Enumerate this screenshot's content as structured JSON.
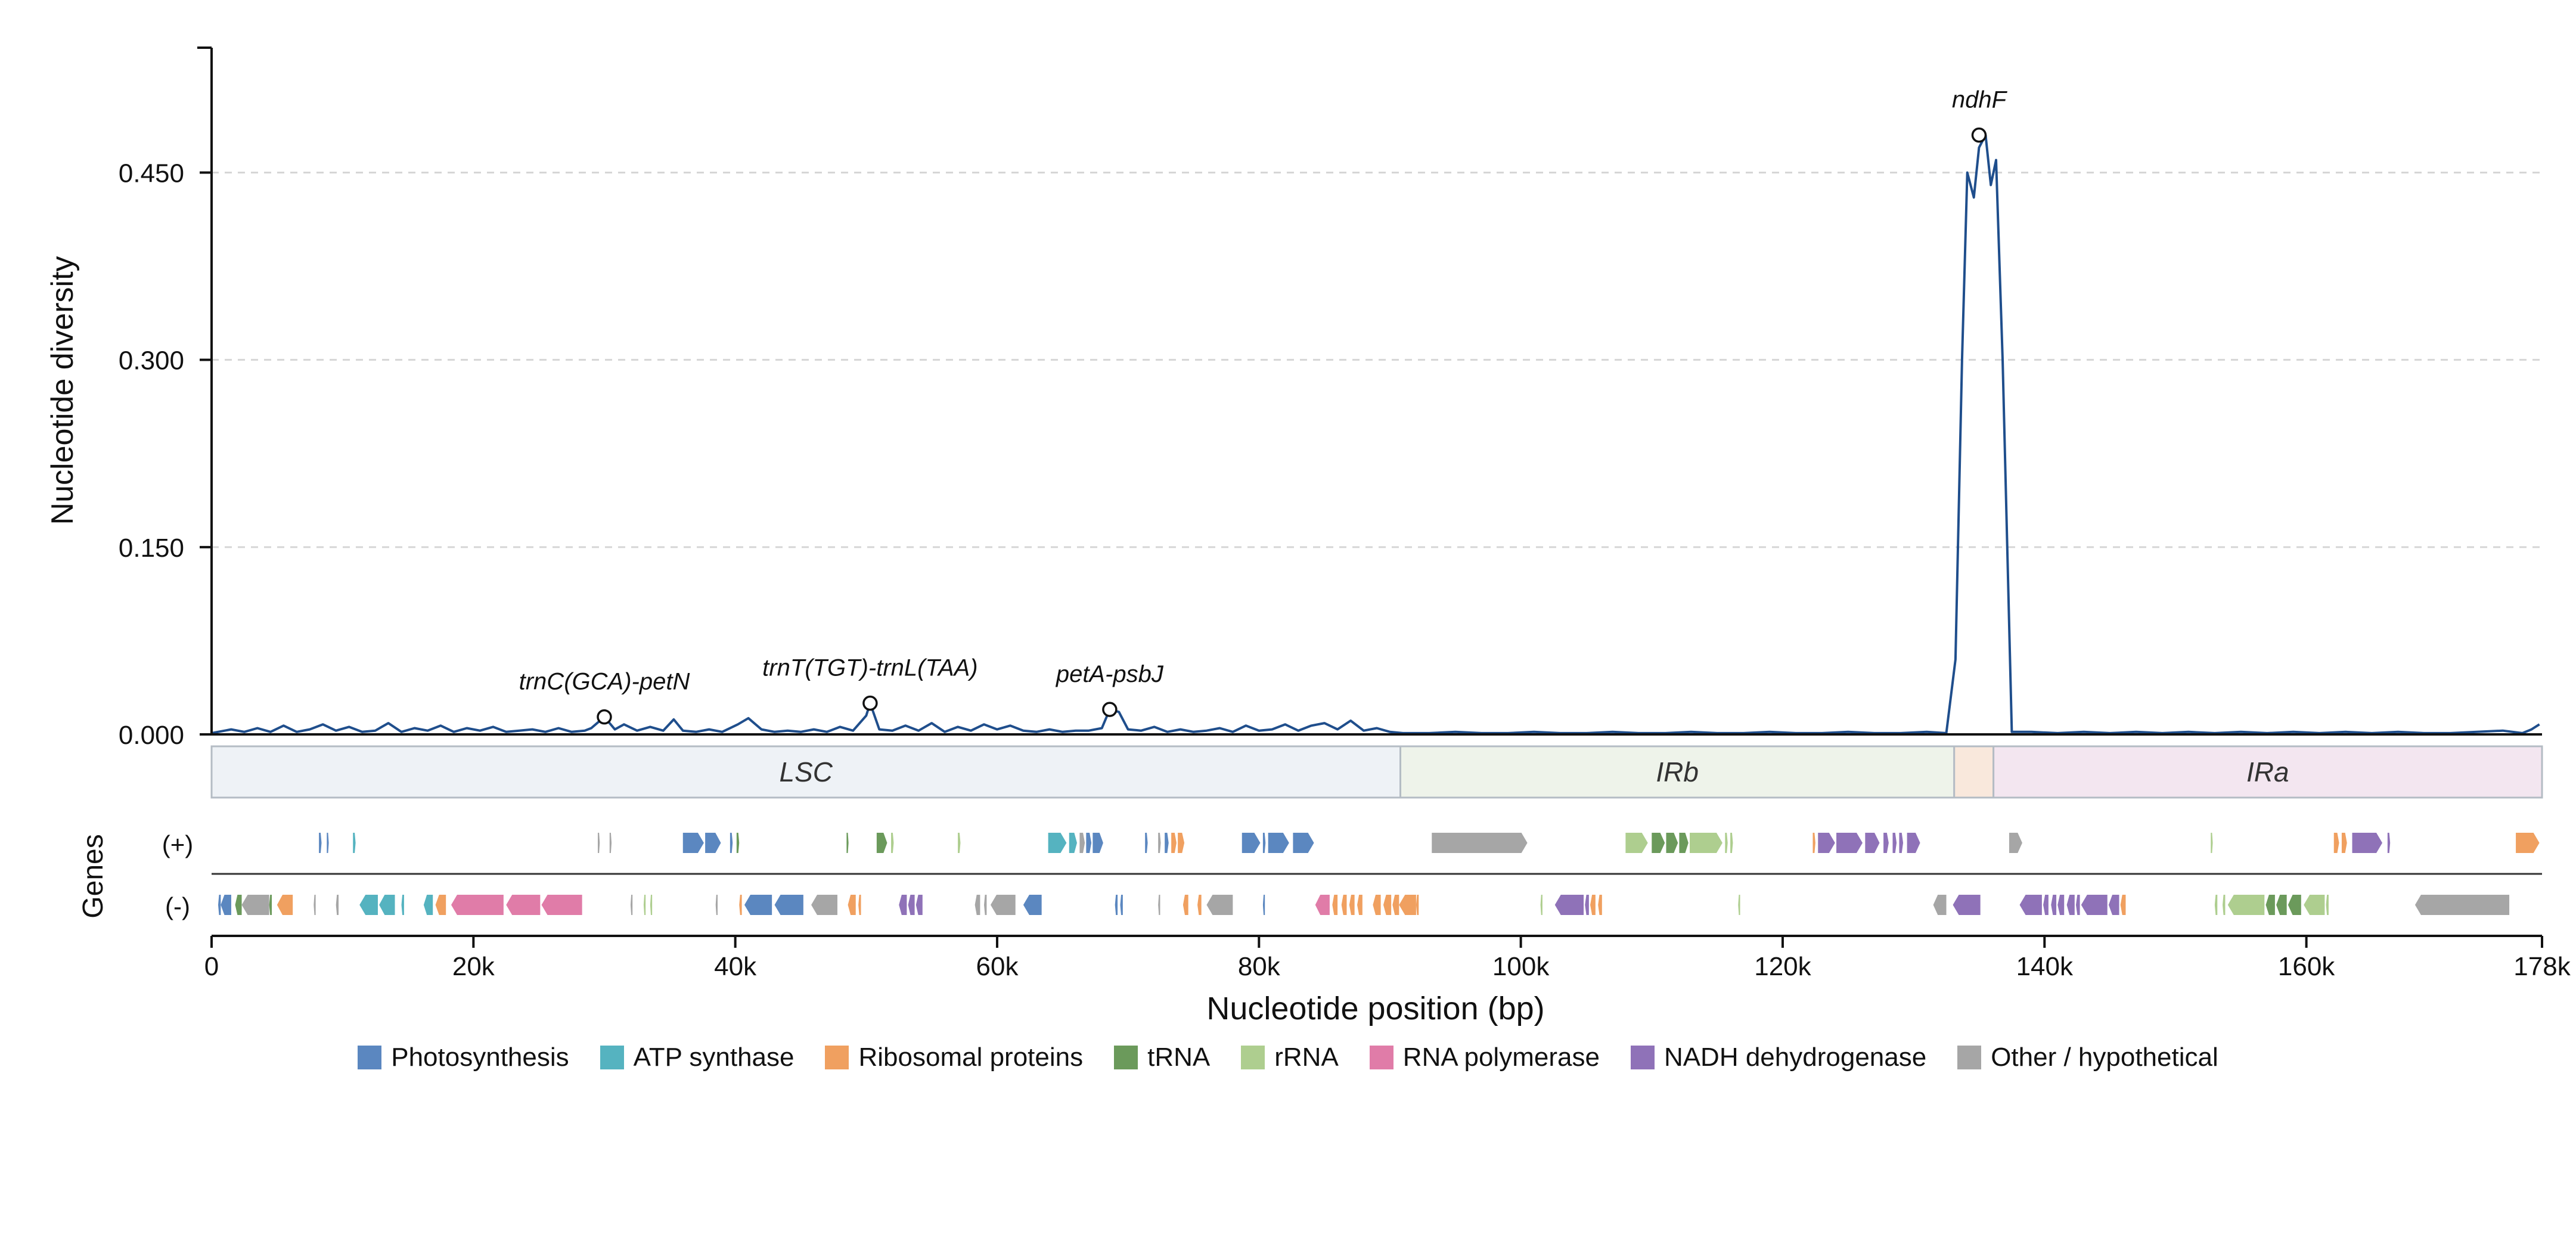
{
  "chart_data": {
    "type": "line",
    "title": "",
    "xlabel": "Nucleotide position (bp)",
    "ylabel": "Nucleotide diversity",
    "genes_label": "Genes",
    "strand_labels": {
      "plus": "(+)",
      "minus": "(-)"
    },
    "xlim": [
      0,
      178000
    ],
    "ylim": [
      0,
      0.55
    ],
    "x_ticks": [
      {
        "value": 0,
        "label": "0"
      },
      {
        "value": 20000,
        "label": "20k"
      },
      {
        "value": 40000,
        "label": "40k"
      },
      {
        "value": 60000,
        "label": "60k"
      },
      {
        "value": 80000,
        "label": "80k"
      },
      {
        "value": 100000,
        "label": "100k"
      },
      {
        "value": 120000,
        "label": "120k"
      },
      {
        "value": 140000,
        "label": "140k"
      },
      {
        "value": 160000,
        "label": "160k"
      },
      {
        "value": 178000,
        "label": "178k"
      }
    ],
    "y_ticks": [
      {
        "value": 0,
        "label": "0.000"
      },
      {
        "value": 0.15,
        "label": "0.150"
      },
      {
        "value": 0.3,
        "label": "0.300"
      },
      {
        "value": 0.45,
        "label": "0.450"
      }
    ],
    "grid": "horizontal dashed",
    "line_color": "#1f4e8c",
    "series": [
      {
        "x": [
          0,
          1500,
          2500,
          3500,
          4500,
          5500,
          6500,
          7500,
          8500,
          9500,
          10500,
          11500,
          12500,
          13500,
          14500,
          15500,
          16500,
          17500,
          18500,
          19500,
          20500,
          21500,
          22500,
          23500,
          24500,
          25500,
          26500,
          27500,
          28500,
          29000,
          30000,
          30800,
          31500,
          32500,
          33500,
          34500,
          35300,
          36000,
          37000,
          38000,
          39000,
          40200,
          41000,
          42000,
          43000,
          44000,
          45000,
          46000,
          47000,
          48000,
          49000,
          50000,
          50300,
          51000,
          52000,
          53000,
          54000,
          55000,
          56000,
          57000,
          58000,
          59000,
          60000,
          61000,
          62000,
          63000,
          64000,
          65000,
          66000,
          67000,
          68000,
          68600,
          69300,
          70000,
          71000,
          72000,
          73000,
          74000,
          75000,
          76000,
          77000,
          78000,
          79000,
          80000,
          81000,
          82000,
          83000,
          84000,
          85000,
          86000,
          87000,
          88000,
          89000,
          90000,
          91000,
          93000,
          95000,
          97000,
          99000,
          101000,
          103000,
          105000,
          107000,
          109000,
          111000,
          113000,
          115000,
          117000,
          119000,
          121000,
          123000,
          125000,
          127000,
          129000,
          131000,
          132500,
          133200,
          133700,
          134100,
          134600,
          135000,
          135500,
          135900,
          136300,
          136800,
          137500,
          139000,
          141000,
          143000,
          145000,
          147000,
          149000,
          151000,
          153000,
          155000,
          157000,
          159000,
          161000,
          163000,
          165000,
          167000,
          169000,
          171000,
          173000,
          175000,
          176500,
          177200,
          177800
        ],
        "y": [
          0.001,
          0.004,
          0.002,
          0.005,
          0.002,
          0.007,
          0.002,
          0.004,
          0.008,
          0.003,
          0.006,
          0.002,
          0.003,
          0.009,
          0.002,
          0.005,
          0.003,
          0.007,
          0.002,
          0.005,
          0.003,
          0.006,
          0.002,
          0.003,
          0.004,
          0.002,
          0.005,
          0.002,
          0.003,
          0.005,
          0.014,
          0.004,
          0.008,
          0.003,
          0.006,
          0.003,
          0.012,
          0.003,
          0.002,
          0.004,
          0.002,
          0.008,
          0.013,
          0.004,
          0.002,
          0.003,
          0.002,
          0.004,
          0.002,
          0.006,
          0.003,
          0.015,
          0.025,
          0.004,
          0.003,
          0.007,
          0.003,
          0.009,
          0.002,
          0.006,
          0.003,
          0.008,
          0.004,
          0.007,
          0.003,
          0.002,
          0.004,
          0.002,
          0.003,
          0.003,
          0.005,
          0.02,
          0.018,
          0.004,
          0.003,
          0.006,
          0.002,
          0.004,
          0.002,
          0.003,
          0.005,
          0.002,
          0.007,
          0.003,
          0.004,
          0.008,
          0.003,
          0.007,
          0.009,
          0.004,
          0.011,
          0.003,
          0.005,
          0.002,
          0.001,
          0.001,
          0.002,
          0.001,
          0.001,
          0.002,
          0.001,
          0.001,
          0.002,
          0.001,
          0.001,
          0.002,
          0.001,
          0.001,
          0.002,
          0.001,
          0.001,
          0.002,
          0.001,
          0.001,
          0.002,
          0.001,
          0.06,
          0.3,
          0.45,
          0.43,
          0.47,
          0.48,
          0.44,
          0.46,
          0.3,
          0.002,
          0.002,
          0.001,
          0.002,
          0.001,
          0.002,
          0.001,
          0.002,
          0.001,
          0.002,
          0.001,
          0.002,
          0.001,
          0.002,
          0.001,
          0.002,
          0.001,
          0.001,
          0.002,
          0.003,
          0.001,
          0.004,
          0.008
        ]
      }
    ],
    "annotations": [
      {
        "label": "trnC(GCA)-petN",
        "x": 30000,
        "y": 0.014
      },
      {
        "label": "trnT(TGT)-trnL(TAA)",
        "x": 50300,
        "y": 0.025
      },
      {
        "label": "petA-psbJ",
        "x": 68600,
        "y": 0.02
      },
      {
        "label": "ndhF",
        "x": 135000,
        "y": 0.48
      }
    ],
    "regions": [
      {
        "label": "LSC",
        "start": 0,
        "end": 90800,
        "color": "#eef2f6"
      },
      {
        "label": "IRb",
        "start": 90800,
        "end": 133100,
        "color": "#eef3ea"
      },
      {
        "label": "",
        "start": 133100,
        "end": 136100,
        "color": "#f9e8dc"
      },
      {
        "label": "IRa",
        "start": 136100,
        "end": 178000,
        "color": "#f3e6f0"
      }
    ],
    "gene_categories": [
      {
        "key": "photo",
        "label": "Photosynthesis",
        "color": "#5b87c0"
      },
      {
        "key": "atp",
        "label": "ATP synthase",
        "color": "#55b3c0"
      },
      {
        "key": "ribo",
        "label": "Ribosomal proteins",
        "color": "#f0a060"
      },
      {
        "key": "trna",
        "label": "tRNA",
        "color": "#6b9a5b"
      },
      {
        "key": "rrna",
        "label": "rRNA",
        "color": "#aece8f"
      },
      {
        "key": "rnap",
        "label": "RNA polymerase",
        "color": "#e07ca8"
      },
      {
        "key": "ndh",
        "label": "NADH dehydrogenase",
        "color": "#8f72b8"
      },
      {
        "key": "other",
        "label": "Other / hypothetical",
        "color": "#a6a6a6"
      }
    ],
    "genes_plus": [
      {
        "start": 8200,
        "end": 8400,
        "cat": "photo"
      },
      {
        "start": 8800,
        "end": 8950,
        "cat": "photo"
      },
      {
        "start": 10800,
        "end": 11000,
        "cat": "atp"
      },
      {
        "start": 29500,
        "end": 29650,
        "cat": "other"
      },
      {
        "start": 30400,
        "end": 30550,
        "cat": "other"
      },
      {
        "start": 36000,
        "end": 37600,
        "cat": "photo"
      },
      {
        "start": 37700,
        "end": 38900,
        "cat": "photo"
      },
      {
        "start": 39600,
        "end": 39800,
        "cat": "photo"
      },
      {
        "start": 40100,
        "end": 40300,
        "cat": "trna"
      },
      {
        "start": 48500,
        "end": 48650,
        "cat": "trna"
      },
      {
        "start": 50800,
        "end": 51600,
        "cat": "trna"
      },
      {
        "start": 51900,
        "end": 52100,
        "cat": "rrna"
      },
      {
        "start": 57000,
        "end": 57200,
        "cat": "rrna"
      },
      {
        "start": 63900,
        "end": 65300,
        "cat": "atp"
      },
      {
        "start": 65500,
        "end": 66100,
        "cat": "atp"
      },
      {
        "start": 66300,
        "end": 66700,
        "cat": "other"
      },
      {
        "start": 66800,
        "end": 67200,
        "cat": "photo"
      },
      {
        "start": 67300,
        "end": 68100,
        "cat": "photo"
      },
      {
        "start": 71300,
        "end": 71500,
        "cat": "photo"
      },
      {
        "start": 72300,
        "end": 72500,
        "cat": "other"
      },
      {
        "start": 72800,
        "end": 73100,
        "cat": "photo"
      },
      {
        "start": 73300,
        "end": 73700,
        "cat": "ribo"
      },
      {
        "start": 73800,
        "end": 74300,
        "cat": "ribo"
      },
      {
        "start": 78700,
        "end": 80100,
        "cat": "photo"
      },
      {
        "start": 80300,
        "end": 80500,
        "cat": "photo"
      },
      {
        "start": 80700,
        "end": 82300,
        "cat": "photo"
      },
      {
        "start": 82600,
        "end": 84200,
        "cat": "photo"
      },
      {
        "start": 93200,
        "end": 100500,
        "cat": "other"
      },
      {
        "start": 108000,
        "end": 109700,
        "cat": "rrna"
      },
      {
        "start": 110000,
        "end": 111000,
        "cat": "trna"
      },
      {
        "start": 111100,
        "end": 112000,
        "cat": "trna"
      },
      {
        "start": 112100,
        "end": 112800,
        "cat": "trna"
      },
      {
        "start": 112900,
        "end": 115400,
        "cat": "rrna"
      },
      {
        "start": 115600,
        "end": 115800,
        "cat": "rrna"
      },
      {
        "start": 116000,
        "end": 116200,
        "cat": "rrna"
      },
      {
        "start": 122300,
        "end": 122500,
        "cat": "ribo"
      },
      {
        "start": 122700,
        "end": 124000,
        "cat": "ndh"
      },
      {
        "start": 124100,
        "end": 126100,
        "cat": "ndh"
      },
      {
        "start": 126300,
        "end": 127400,
        "cat": "ndh"
      },
      {
        "start": 127700,
        "end": 128100,
        "cat": "ndh"
      },
      {
        "start": 128400,
        "end": 128700,
        "cat": "ndh"
      },
      {
        "start": 128900,
        "end": 129200,
        "cat": "ndh"
      },
      {
        "start": 129500,
        "end": 130500,
        "cat": "ndh"
      },
      {
        "start": 137300,
        "end": 138300,
        "cat": "other"
      },
      {
        "start": 152700,
        "end": 152850,
        "cat": "rrna"
      },
      {
        "start": 162100,
        "end": 162500,
        "cat": "ribo"
      },
      {
        "start": 162700,
        "end": 163100,
        "cat": "ribo"
      },
      {
        "start": 163500,
        "end": 165800,
        "cat": "ndh"
      },
      {
        "start": 166200,
        "end": 166400,
        "cat": "ndh"
      },
      {
        "start": 176000,
        "end": 177800,
        "cat": "ribo"
      }
    ],
    "genes_minus": [
      {
        "start": 500,
        "end": 700,
        "cat": "photo"
      },
      {
        "start": 700,
        "end": 1500,
        "cat": "photo"
      },
      {
        "start": 1800,
        "end": 2300,
        "cat": "trna"
      },
      {
        "start": 2300,
        "end": 4400,
        "cat": "other"
      },
      {
        "start": 4400,
        "end": 4600,
        "cat": "trna"
      },
      {
        "start": 5000,
        "end": 6200,
        "cat": "ribo"
      },
      {
        "start": 7800,
        "end": 7950,
        "cat": "other"
      },
      {
        "start": 9500,
        "end": 9700,
        "cat": "other"
      },
      {
        "start": 11300,
        "end": 12700,
        "cat": "atp"
      },
      {
        "start": 12800,
        "end": 14000,
        "cat": "atp"
      },
      {
        "start": 14500,
        "end": 14700,
        "cat": "atp"
      },
      {
        "start": 16200,
        "end": 16900,
        "cat": "atp"
      },
      {
        "start": 17100,
        "end": 17900,
        "cat": "ribo"
      },
      {
        "start": 18300,
        "end": 22300,
        "cat": "rnap"
      },
      {
        "start": 22500,
        "end": 25100,
        "cat": "rnap"
      },
      {
        "start": 25200,
        "end": 28300,
        "cat": "rnap"
      },
      {
        "start": 32000,
        "end": 32150,
        "cat": "other"
      },
      {
        "start": 33000,
        "end": 33150,
        "cat": "rrna"
      },
      {
        "start": 33500,
        "end": 33650,
        "cat": "rrna"
      },
      {
        "start": 38500,
        "end": 38650,
        "cat": "other"
      },
      {
        "start": 40300,
        "end": 40500,
        "cat": "ribo"
      },
      {
        "start": 40700,
        "end": 42800,
        "cat": "photo"
      },
      {
        "start": 43000,
        "end": 45200,
        "cat": "photo"
      },
      {
        "start": 45800,
        "end": 47800,
        "cat": "other"
      },
      {
        "start": 48600,
        "end": 49200,
        "cat": "ribo"
      },
      {
        "start": 49400,
        "end": 49600,
        "cat": "ribo"
      },
      {
        "start": 52500,
        "end": 53100,
        "cat": "ndh"
      },
      {
        "start": 53200,
        "end": 53700,
        "cat": "ndh"
      },
      {
        "start": 53800,
        "end": 54300,
        "cat": "ndh"
      },
      {
        "start": 58300,
        "end": 58700,
        "cat": "other"
      },
      {
        "start": 59000,
        "end": 59200,
        "cat": "other"
      },
      {
        "start": 59500,
        "end": 61400,
        "cat": "other"
      },
      {
        "start": 62000,
        "end": 63400,
        "cat": "photo"
      },
      {
        "start": 69000,
        "end": 69200,
        "cat": "photo"
      },
      {
        "start": 69400,
        "end": 69600,
        "cat": "photo"
      },
      {
        "start": 72300,
        "end": 72450,
        "cat": "other"
      },
      {
        "start": 74200,
        "end": 74600,
        "cat": "ribo"
      },
      {
        "start": 75300,
        "end": 75600,
        "cat": "ribo"
      },
      {
        "start": 76000,
        "end": 78000,
        "cat": "other"
      },
      {
        "start": 80300,
        "end": 80450,
        "cat": "photo"
      },
      {
        "start": 84300,
        "end": 85400,
        "cat": "rnap"
      },
      {
        "start": 85600,
        "end": 86000,
        "cat": "ribo"
      },
      {
        "start": 86300,
        "end": 86700,
        "cat": "ribo"
      },
      {
        "start": 86900,
        "end": 87300,
        "cat": "ribo"
      },
      {
        "start": 87500,
        "end": 87900,
        "cat": "ribo"
      },
      {
        "start": 88700,
        "end": 89300,
        "cat": "ribo"
      },
      {
        "start": 89500,
        "end": 90100,
        "cat": "ribo"
      },
      {
        "start": 90200,
        "end": 90700,
        "cat": "ribo"
      },
      {
        "start": 90700,
        "end": 92000,
        "cat": "ribo"
      },
      {
        "start": 92000,
        "end": 92200,
        "cat": "ribo"
      },
      {
        "start": 101500,
        "end": 101650,
        "cat": "rrna"
      },
      {
        "start": 102600,
        "end": 104800,
        "cat": "ndh"
      },
      {
        "start": 104900,
        "end": 105200,
        "cat": "ndh"
      },
      {
        "start": 105300,
        "end": 105700,
        "cat": "ribo"
      },
      {
        "start": 105900,
        "end": 106200,
        "cat": "ribo"
      },
      {
        "start": 116600,
        "end": 116750,
        "cat": "rrna"
      },
      {
        "start": 131500,
        "end": 132500,
        "cat": "other"
      },
      {
        "start": 133000,
        "end": 135100,
        "cat": "ndh"
      },
      {
        "start": 138100,
        "end": 139800,
        "cat": "ndh"
      },
      {
        "start": 139900,
        "end": 140300,
        "cat": "ndh"
      },
      {
        "start": 140500,
        "end": 140900,
        "cat": "ndh"
      },
      {
        "start": 141000,
        "end": 141500,
        "cat": "ndh"
      },
      {
        "start": 141700,
        "end": 142300,
        "cat": "ndh"
      },
      {
        "start": 142400,
        "end": 142700,
        "cat": "ndh"
      },
      {
        "start": 142800,
        "end": 144800,
        "cat": "ndh"
      },
      {
        "start": 144900,
        "end": 145700,
        "cat": "ndh"
      },
      {
        "start": 145800,
        "end": 146200,
        "cat": "ribo"
      },
      {
        "start": 153000,
        "end": 153200,
        "cat": "rrna"
      },
      {
        "start": 153600,
        "end": 153800,
        "cat": "rrna"
      },
      {
        "start": 154000,
        "end": 156800,
        "cat": "rrna"
      },
      {
        "start": 156900,
        "end": 157600,
        "cat": "trna"
      },
      {
        "start": 157700,
        "end": 158500,
        "cat": "trna"
      },
      {
        "start": 158600,
        "end": 159600,
        "cat": "trna"
      },
      {
        "start": 159800,
        "end": 161400,
        "cat": "rrna"
      },
      {
        "start": 161500,
        "end": 161700,
        "cat": "rrna"
      },
      {
        "start": 168300,
        "end": 175500,
        "cat": "other"
      }
    ]
  }
}
